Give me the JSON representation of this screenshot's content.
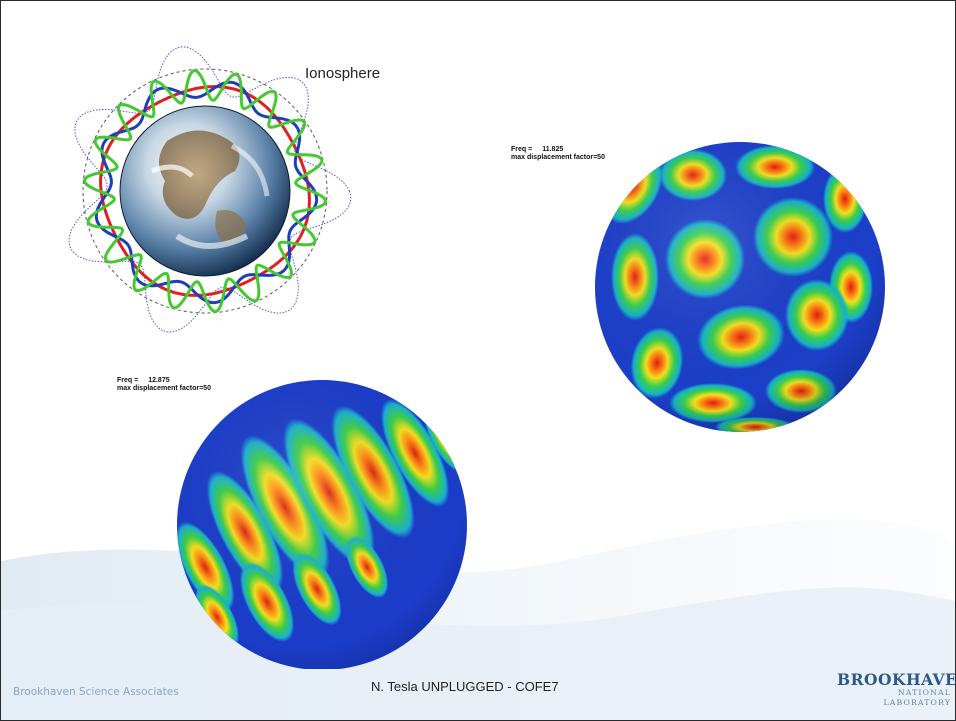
{
  "slide": {
    "ionosphere_label": "Ionosphere",
    "footer_left": "Brookhaven Science Associates",
    "footer_center": "N. Tesla UNPLUGGED - COFE7",
    "logo": {
      "top": "BROOKHAVEN",
      "bottom": "NATIONAL LABORATORY"
    }
  },
  "plots": {
    "sphere_right": {
      "freq_label": "Freq =",
      "freq_value": "11.825",
      "displacement_label": "max displacement factor=50"
    },
    "sphere_left": {
      "freq_label": "Freq =",
      "freq_value": "12.875",
      "displacement_label": "max displacement factor=50"
    }
  },
  "colors": {
    "frame": "#2a2a2a",
    "footer_text": "#8aa6c2",
    "logo_blue": "#2a5a8c",
    "mode_blue": "#1f3fb8",
    "mode_green": "#46c832",
    "mode_red": "#e02020"
  }
}
